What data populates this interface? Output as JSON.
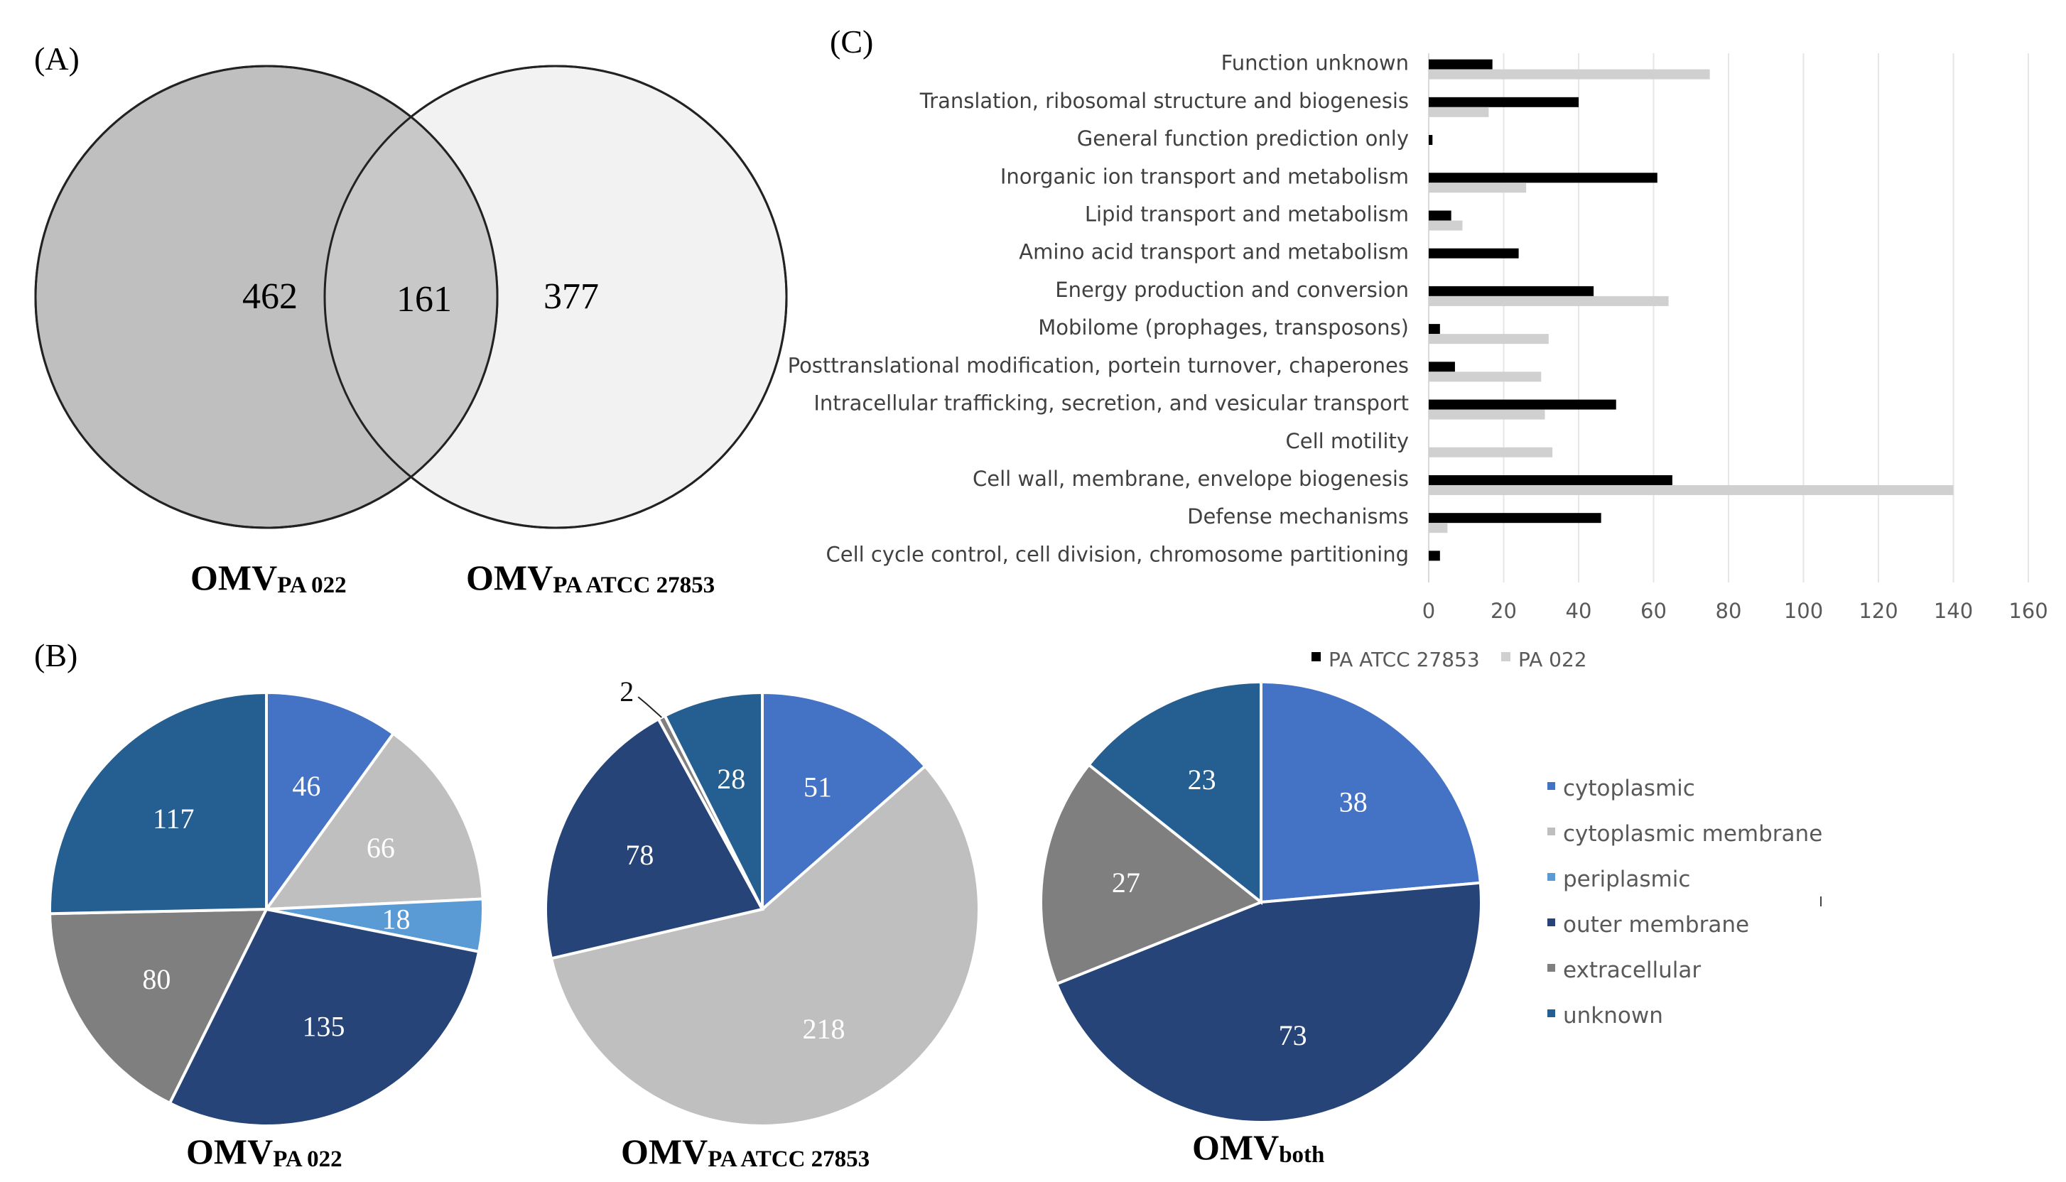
{
  "colors": {
    "cytoplasmic": "#4472c4",
    "cytoplasmic_membrane": "#bfbfbf",
    "periplasmic": "#5b9bd5",
    "outer_membrane": "#264478",
    "extracellular": "#7f7f7f",
    "unknown": "#255e91",
    "venn_left": "#bfbfbf",
    "venn_right": "#f2f2f2",
    "venn_overlap": "#c8c8c8",
    "bar_atcc": "#000000",
    "bar_pa022": "#d0d0d0"
  },
  "panelA": {
    "label": "(A)",
    "left_count": "462",
    "overlap_count": "161",
    "right_count": "377",
    "left_name": {
      "main": "OMV",
      "sub": "PA 022"
    },
    "right_name": {
      "main": "OMV",
      "sub": "PA ATCC 27853"
    }
  },
  "panelB": {
    "label": "(B)",
    "legend": [
      {
        "key": "cytoplasmic",
        "label": "cytoplasmic"
      },
      {
        "key": "cytoplasmic_membrane",
        "label": "cytoplasmic membrane"
      },
      {
        "key": "periplasmic",
        "label": "periplasmic"
      },
      {
        "key": "outer_membrane",
        "label": "outer membrane"
      },
      {
        "key": "extracellular",
        "label": "extracellular"
      },
      {
        "key": "unknown",
        "label": "unknown"
      }
    ]
  },
  "panelC": {
    "label": "(C)"
  },
  "chart_data": [
    {
      "type": "pie",
      "title": {
        "main": "OMV",
        "sub": "PA 022"
      },
      "slices": [
        {
          "category": "cytoplasmic",
          "value": 46
        },
        {
          "category": "cytoplasmic_membrane",
          "value": 66
        },
        {
          "category": "periplasmic",
          "value": 18
        },
        {
          "category": "outer_membrane",
          "value": 135
        },
        {
          "category": "extracellular",
          "value": 80
        },
        {
          "category": "unknown",
          "value": 117
        }
      ]
    },
    {
      "type": "pie",
      "title": {
        "main": "OMV",
        "sub": "PA ATCC 27853"
      },
      "slices": [
        {
          "category": "cytoplasmic",
          "value": 51
        },
        {
          "category": "cytoplasmic_membrane",
          "value": 218
        },
        {
          "category": "outer_membrane",
          "value": 78
        },
        {
          "category": "extracellular",
          "value": 2
        },
        {
          "category": "unknown",
          "value": 28
        }
      ]
    },
    {
      "type": "pie",
      "title": {
        "main": "OMV",
        "sub": "both"
      },
      "slices": [
        {
          "category": "cytoplasmic",
          "value": 38
        },
        {
          "category": "outer_membrane",
          "value": 73
        },
        {
          "category": "extracellular",
          "value": 27
        },
        {
          "category": "unknown",
          "value": 23
        }
      ]
    },
    {
      "type": "bar",
      "orientation": "horizontal",
      "categories": [
        "Function unknown",
        "Translation, ribosomal structure and biogenesis",
        "General function prediction only",
        "Inorganic ion transport and metabolism",
        "Lipid transport and metabolism",
        "Amino acid transport and metabolism",
        "Energy production and conversion",
        "Mobilome (prophages, transposons)",
        "Posttranslational modification, portein turnover, chaperones",
        "Intracellular trafficking, secretion, and vesicular transport",
        "Cell motility",
        "Cell wall, membrane, envelope biogenesis",
        "Defense mechanisms",
        "Cell cycle control, cell division, chromosome partitioning"
      ],
      "series": [
        {
          "name": "PA ATCC 27853",
          "values": [
            17,
            40,
            1,
            61,
            6,
            24,
            44,
            3,
            7,
            50,
            0,
            65,
            46,
            3
          ]
        },
        {
          "name": "PA 022",
          "values": [
            75,
            16,
            0,
            26,
            9,
            0,
            64,
            32,
            30,
            31,
            33,
            140,
            5,
            0
          ]
        }
      ],
      "xlim": [
        0,
        160
      ],
      "xticks": [
        0,
        20,
        40,
        60,
        80,
        100,
        120,
        140,
        160
      ],
      "grid": true,
      "legend": "bottom"
    }
  ]
}
